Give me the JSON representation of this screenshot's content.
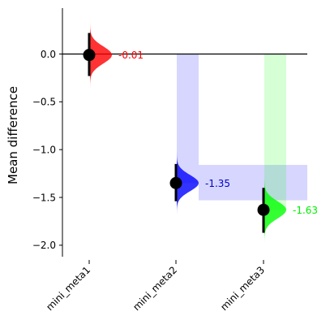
{
  "chart_data": {
    "type": "estimation-plot",
    "ylabel": "Mean difference",
    "ylim": [
      -2.12,
      0.48
    ],
    "yticks": [
      0.0,
      -0.5,
      -1.0,
      -1.5,
      -2.0
    ],
    "ytick_labels": [
      "0.0",
      "−0.5",
      "−1.0",
      "−1.5",
      "−2.0"
    ],
    "zero_line": true,
    "categories": [
      "mini_meta1",
      "mini_meta2",
      "mini_meta3"
    ],
    "colors": [
      "#ff0000",
      "#0000ff",
      "#00ff00"
    ],
    "label_colors": [
      "#ff0000",
      "#0000cc",
      "#00ee00"
    ],
    "effects": [
      {
        "category": "mini_meta1",
        "mean": -0.01,
        "label": "-0.01",
        "ci_low": -0.23,
        "ci_high": 0.22,
        "dist_peak": -0.01,
        "dist_sd": 0.09,
        "dist_min": -0.36,
        "dist_max": 0.37
      },
      {
        "category": "mini_meta2",
        "mean": -1.35,
        "label": "-1.35",
        "ci_low": -1.54,
        "ci_high": -1.15,
        "dist_peak": -1.35,
        "dist_sd": 0.085,
        "dist_min": -1.68,
        "dist_max": -1.02
      },
      {
        "category": "mini_meta3",
        "mean": -1.63,
        "label": "-1.63",
        "ci_low": -1.87,
        "ci_high": -1.4,
        "dist_peak": -1.63,
        "dist_sd": 0.09,
        "dist_min": -2.0,
        "dist_max": -1.27
      }
    ],
    "bands": [
      {
        "color": "#0000ff",
        "x_from": "mini_meta2",
        "y_from": -1.35,
        "y_to": 0.0,
        "extent": "right-edge",
        "y_band": [
          -1.53,
          -1.16
        ]
      },
      {
        "color": "#00ff00",
        "x_from": "mini_meta3",
        "y_from": -1.63,
        "y_to": 0.0
      }
    ]
  }
}
